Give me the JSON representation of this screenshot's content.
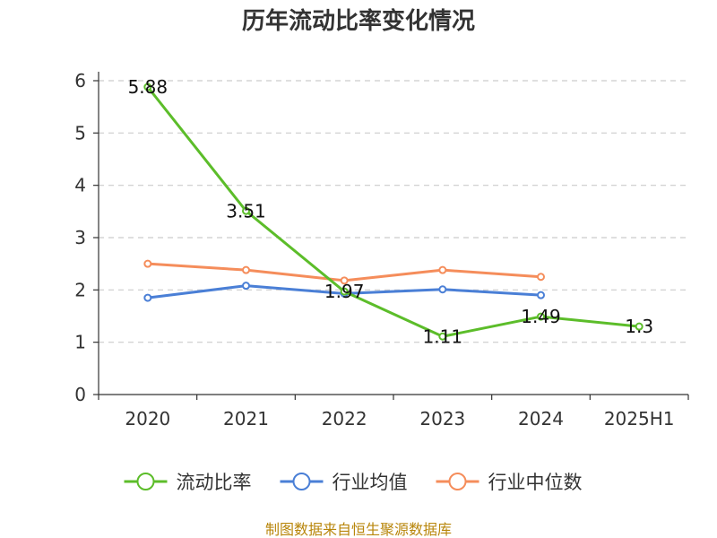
{
  "chart_data": {
    "type": "line",
    "title": "历年流动比率变化情况",
    "categories": [
      "2020",
      "2021",
      "2022",
      "2023",
      "2024",
      "2025H1"
    ],
    "ylim": [
      0,
      6
    ],
    "yticks": [
      "0",
      "1",
      "2",
      "3",
      "4",
      "5",
      "6"
    ],
    "grid": true,
    "legend_position": "bottom",
    "series": [
      {
        "name": "流动比率",
        "color": "#5cbd2a",
        "values": [
          5.88,
          3.51,
          1.97,
          1.11,
          1.49,
          1.3
        ],
        "labels": [
          "5.88",
          "3.51",
          "1.97",
          "1.11",
          "1.49",
          "1.3"
        ]
      },
      {
        "name": "行业均值",
        "color": "#4a7fd6",
        "values": [
          1.85,
          2.08,
          1.93,
          2.01,
          1.9,
          null
        ]
      },
      {
        "name": "行业中位数",
        "color": "#f58d5b",
        "values": [
          2.5,
          2.38,
          2.18,
          2.38,
          2.25,
          null
        ]
      }
    ]
  },
  "footer": "制图数据来自恒生聚源数据库"
}
